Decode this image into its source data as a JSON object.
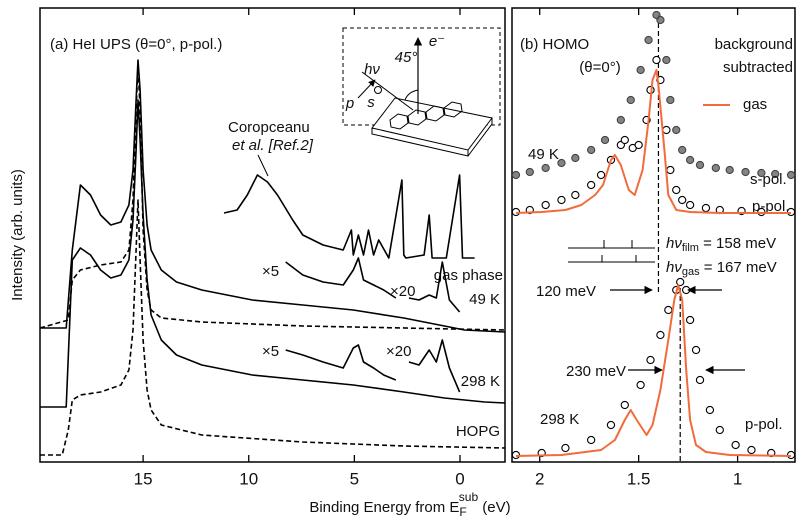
{
  "chart_data": [
    {
      "type": "line",
      "title": "(a) HeI UPS (θ=0°, p-pol.)",
      "ylabel": "Intensity (arb. units)",
      "xlabel": {
        "text": "Binding Energy from E",
        "sub": "F",
        "sup": "sub",
        "unit": " (eV)"
      },
      "xlim": [
        19.88,
        -2.13
      ],
      "ylim": [
        0,
        454
      ],
      "xticks": [
        15,
        10,
        5,
        0
      ],
      "series": [
        {
          "name": "gas phase",
          "color": "#000000",
          "style": "line",
          "x": [
            11.17,
            10.55,
            10.07,
            9.59,
            9.11,
            8.64,
            7.92,
            7.44,
            6.48,
            5.53,
            5.14,
            5.05,
            4.81,
            4.57,
            4.33,
            4.09,
            3.85,
            3.37,
            2.75,
            2.66,
            2.56,
            1.7,
            1.46,
            1.32,
            0.84,
            0.65,
            0.02,
            -0.12,
            -0.31,
            -0.69
          ],
          "values": [
            249,
            252,
            267,
            287,
            280,
            267,
            242,
            227,
            217,
            212,
            232,
            207,
            227,
            207,
            232,
            207,
            222,
            204,
            282,
            207,
            204,
            207,
            247,
            204,
            204,
            204,
            287,
            204,
            204,
            204
          ]
        },
        {
          "name": "49 K",
          "color": "#000000",
          "style": "line",
          "x": [
            19.88,
            18.64,
            18.35,
            17.97,
            17.49,
            17.01,
            16.53,
            16.05,
            15.67,
            15.48,
            15.33,
            15.24,
            15.14,
            15.0,
            14.81,
            14.62,
            14.14,
            13.42,
            12.22,
            9.83,
            7.44,
            5.05,
            2.66,
            1.7,
            0.74,
            -0.22,
            -1.17,
            -2.13
          ],
          "values": [
            134,
            134,
            212,
            277,
            267,
            247,
            237,
            240,
            257,
            292,
            362,
            402,
            372,
            292,
            237,
            212,
            192,
            180,
            172,
            162,
            157,
            152,
            144,
            140,
            136,
            132,
            131,
            130
          ]
        },
        {
          "color": "#000000",
          "style": "line",
          "dash": true,
          "x": [
            19.88,
            18.54,
            18.35,
            17.97,
            17.01,
            16.05,
            15.67,
            15.48,
            15.33,
            15.24,
            15.14,
            15.0,
            14.81,
            14.62,
            14.14,
            12.22,
            7.44,
            -2.13
          ],
          "values": [
            134,
            142,
            182,
            192,
            197,
            200,
            212,
            262,
            352,
            397,
            352,
            232,
            172,
            152,
            144,
            140,
            136,
            132
          ]
        },
        {
          "name": "298 K",
          "color": "#000000",
          "style": "line",
          "x": [
            19.88,
            18.64,
            18.35,
            17.97,
            17.49,
            17.01,
            16.53,
            16.05,
            15.67,
            15.48,
            15.33,
            15.24,
            15.14,
            15.0,
            14.81,
            14.62,
            14.14,
            13.42,
            12.22,
            9.83,
            7.44,
            5.05,
            2.66,
            1.7,
            0.74,
            -0.22,
            -1.17,
            -2.13
          ],
          "values": [
            55,
            55,
            202,
            214,
            207,
            192,
            184,
            187,
            202,
            242,
            312,
            362,
            322,
            247,
            182,
            147,
            122,
            107,
            97,
            87,
            82,
            77,
            70,
            67,
            64,
            62,
            60,
            59
          ]
        },
        {
          "name": "HOPG",
          "color": "#000000",
          "style": "line",
          "dash": true,
          "x": [
            19.88,
            18.83,
            18.54,
            18.35,
            17.97,
            17.01,
            16.05,
            15.67,
            15.48,
            15.33,
            15.24,
            15.14,
            15.0,
            14.81,
            14.62,
            14.14,
            12.22,
            7.44,
            2.66,
            -2.13
          ],
          "values": [
            7,
            7,
            32,
            62,
            67,
            70,
            77,
            92,
            132,
            212,
            262,
            202,
            122,
            72,
            52,
            37,
            27,
            20,
            16,
            14
          ]
        },
        {
          "name": "×5",
          "color": "#000000",
          "style": "line",
          "x": [
            8.25,
            7.44,
            6.48,
            5.53,
            5.05,
            4.81,
            4.57,
            4.09,
            3.61,
            3.04
          ],
          "values": [
            200,
            187,
            180,
            177,
            192,
            204,
            182,
            177,
            172,
            164
          ]
        },
        {
          "name": "×20",
          "color": "#000000",
          "style": "line",
          "x": [
            2.42,
            1.94,
            1.46,
            1.12,
            0.84,
            0.5,
            0.02
          ],
          "values": [
            164,
            162,
            167,
            164,
            200,
            162,
            150
          ]
        },
        {
          "name": "×5",
          "color": "#000000",
          "style": "line",
          "x": [
            8.25,
            7.44,
            6.48,
            5.53,
            5.05,
            4.81,
            4.57,
            4.09,
            3.61,
            3.04
          ],
          "values": [
            112,
            107,
            100,
            94,
            114,
            117,
            100,
            94,
            87,
            82
          ]
        },
        {
          "name": "×20",
          "color": "#000000",
          "style": "line",
          "x": [
            2.42,
            1.94,
            1.46,
            1.12,
            0.84,
            0.5,
            0.02
          ],
          "values": [
            100,
            97,
            112,
            100,
            122,
            94,
            70
          ]
        }
      ],
      "annotations": [
        "Coropceanu",
        "et al. [Ref.2]"
      ],
      "inset": {
        "labels": [
          "hν",
          "45°",
          "e⁻",
          "p",
          "s"
        ]
      }
    },
    {
      "type": "line",
      "title": "(b) HOMO",
      "subtitle": "(θ=0°)",
      "xlim": [
        2.14,
        0.71
      ],
      "ylim": [
        0,
        454
      ],
      "xticks": [
        2,
        1.5,
        1
      ],
      "legend": "upper right",
      "series": [
        {
          "name": "s-pol.",
          "color": "#6e6e6e",
          "style": "markers",
          "marker": "filled",
          "x": [
            2.12,
            2.05,
            1.97,
            1.89,
            1.82,
            1.74,
            1.67,
            1.59,
            1.54,
            1.49,
            1.45,
            1.41,
            1.39,
            1.36,
            1.34,
            1.31,
            1.28,
            1.24,
            1.19,
            1.11,
            1.04,
            0.96,
            0.88,
            0.81,
            0.73
          ],
          "values": [
            287,
            290,
            294,
            299,
            304,
            312,
            322,
            342,
            362,
            392,
            422,
            447,
            442,
            402,
            362,
            332,
            312,
            302,
            297,
            294,
            292,
            290,
            289,
            288,
            287
          ]
        },
        {
          "name": "p-pol.",
          "color": "#000000",
          "style": "markers",
          "marker": "open",
          "x": [
            2.12,
            2.05,
            1.97,
            1.89,
            1.82,
            1.74,
            1.69,
            1.64,
            1.59,
            1.57,
            1.53,
            1.5,
            1.46,
            1.44,
            1.41,
            1.39,
            1.36,
            1.34,
            1.31,
            1.28,
            1.24,
            1.16,
            1.09,
            0.98,
            0.88,
            0.73
          ],
          "values": [
            250,
            252,
            257,
            262,
            267,
            277,
            287,
            302,
            317,
            322,
            314,
            317,
            342,
            372,
            402,
            382,
            332,
            292,
            272,
            262,
            257,
            254,
            252,
            251,
            250,
            250
          ]
        },
        {
          "name": "gas",
          "color": "#f26b3a",
          "style": "line",
          "x": [
            2.12,
            1.99,
            1.87,
            1.79,
            1.72,
            1.68,
            1.64,
            1.62,
            1.59,
            1.55,
            1.52,
            1.48,
            1.45,
            1.43,
            1.41,
            1.4,
            1.37,
            1.35,
            1.31,
            1.24,
            1.09,
            0.73
          ],
          "values": [
            249,
            250,
            252,
            257,
            267,
            277,
            302,
            307,
            297,
            272,
            267,
            292,
            342,
            382,
            392,
            377,
            312,
            267,
            252,
            250,
            249,
            249
          ]
        },
        {
          "name": "p-pol.",
          "color": "#000000",
          "style": "markers",
          "marker": "open",
          "x": [
            2.12,
            1.99,
            1.87,
            1.74,
            1.64,
            1.57,
            1.49,
            1.44,
            1.39,
            1.35,
            1.31,
            1.29,
            1.26,
            1.24,
            1.21,
            1.19,
            1.14,
            1.09,
            1.01,
            0.93,
            0.83,
            0.73
          ],
          "values": [
            7,
            9,
            14,
            22,
            37,
            57,
            77,
            102,
            127,
            152,
            172,
            180,
            172,
            142,
            112,
            82,
            52,
            32,
            17,
            12,
            9,
            7
          ]
        },
        {
          "color": "#f26b3a",
          "style": "line",
          "x": [
            2.12,
            1.89,
            1.69,
            1.62,
            1.57,
            1.54,
            1.51,
            1.46,
            1.43,
            1.39,
            1.35,
            1.32,
            1.3,
            1.28,
            1.26,
            1.24,
            1.21,
            1.16,
            1.04,
            0.73
          ],
          "values": [
            6,
            7,
            12,
            22,
            42,
            52,
            42,
            27,
            37,
            72,
            122,
            162,
            177,
            162,
            92,
            42,
            17,
            10,
            7,
            6
          ]
        }
      ],
      "vlines": [
        1.4,
        1.29
      ],
      "annotations": [
        "background",
        "subtracted",
        "49 K",
        "120 meV",
        "230 meV",
        "298 K"
      ],
      "spacings": [
        {
          "text": "hν",
          "sub": "film",
          "rest": " = 158 meV"
        },
        {
          "text": "hν",
          "sub": "gas",
          "rest": " = 167 meV"
        }
      ]
    }
  ]
}
